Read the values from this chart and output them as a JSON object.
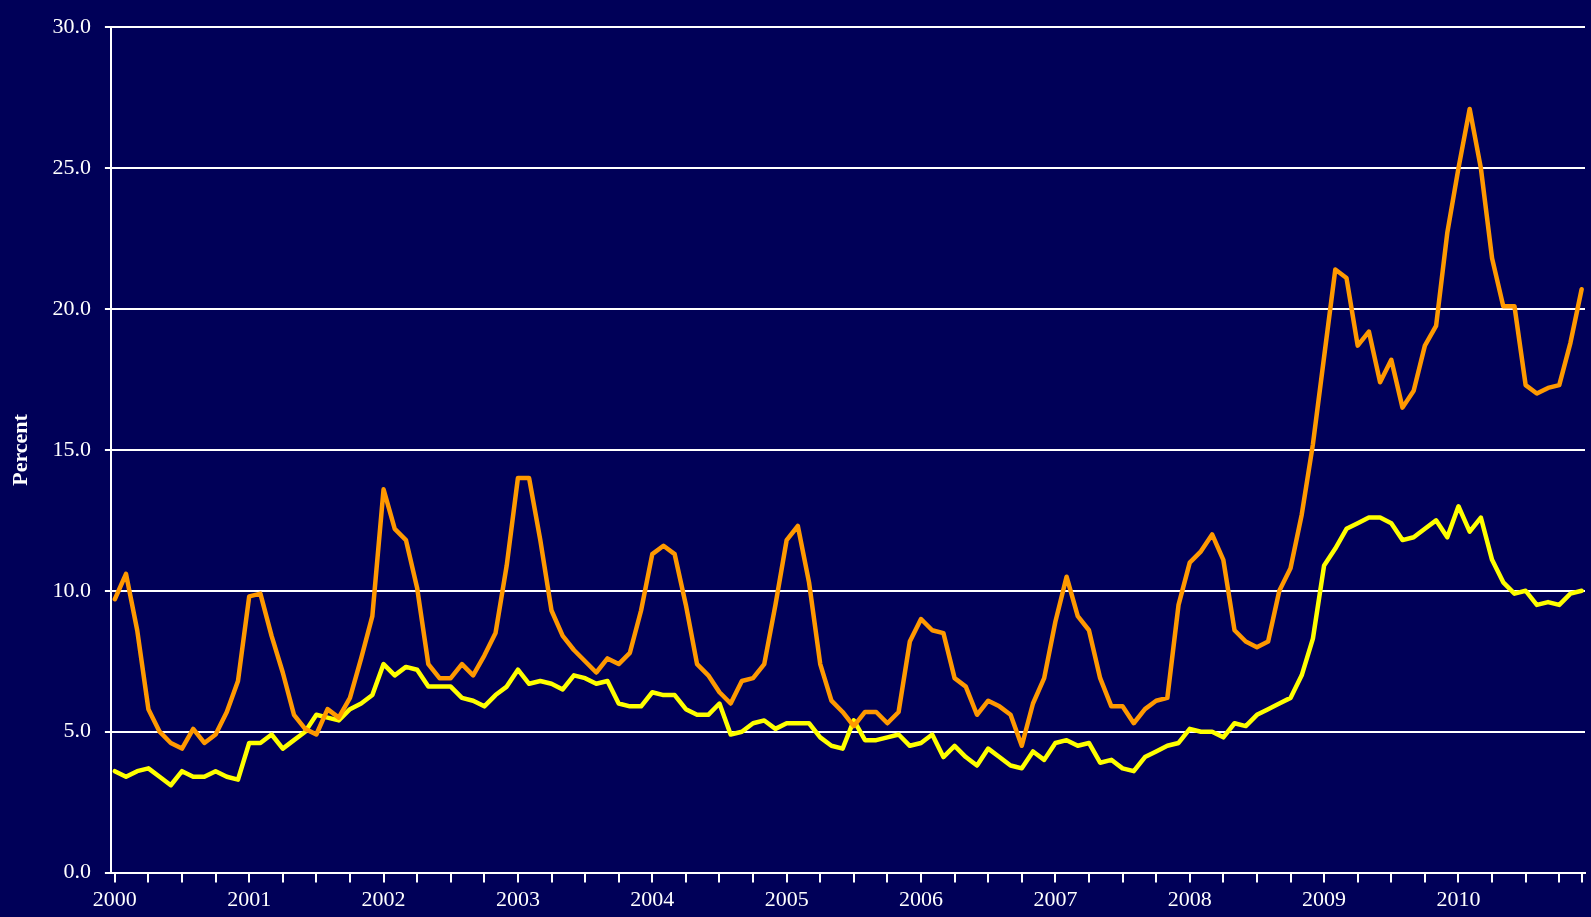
{
  "chart_data": {
    "type": "line",
    "ylabel": "Percent",
    "xlim": [
      "2000-01",
      "2010-12"
    ],
    "xticks": [
      {
        "value": "2000-01",
        "label": "2000"
      },
      {
        "value": "2000-04",
        "label": null
      },
      {
        "value": "2000-07",
        "label": null
      },
      {
        "value": "2000-10",
        "label": null
      },
      {
        "value": "2001-01",
        "label": "2001"
      },
      {
        "value": "2001-04",
        "label": null
      },
      {
        "value": "2001-07",
        "label": null
      },
      {
        "value": "2001-10",
        "label": null
      },
      {
        "value": "2002-01",
        "label": "2002"
      },
      {
        "value": "2002-04",
        "label": null
      },
      {
        "value": "2002-07",
        "label": null
      },
      {
        "value": "2002-10",
        "label": null
      },
      {
        "value": "2003-01",
        "label": "2003"
      },
      {
        "value": "2003-04",
        "label": null
      },
      {
        "value": "2003-07",
        "label": null
      },
      {
        "value": "2003-10",
        "label": null
      },
      {
        "value": "2004-01",
        "label": "2004"
      },
      {
        "value": "2004-04",
        "label": null
      },
      {
        "value": "2004-07",
        "label": null
      },
      {
        "value": "2004-10",
        "label": null
      },
      {
        "value": "2005-01",
        "label": "2005"
      },
      {
        "value": "2005-04",
        "label": null
      },
      {
        "value": "2005-07",
        "label": null
      },
      {
        "value": "2005-10",
        "label": null
      },
      {
        "value": "2006-01",
        "label": "2006"
      },
      {
        "value": "2006-04",
        "label": null
      },
      {
        "value": "2006-07",
        "label": null
      },
      {
        "value": "2006-10",
        "label": null
      },
      {
        "value": "2007-01",
        "label": "2007"
      },
      {
        "value": "2007-04",
        "label": null
      },
      {
        "value": "2007-07",
        "label": null
      },
      {
        "value": "2007-10",
        "label": null
      },
      {
        "value": "2008-01",
        "label": "2008"
      },
      {
        "value": "2008-04",
        "label": null
      },
      {
        "value": "2008-07",
        "label": null
      },
      {
        "value": "2008-10",
        "label": null
      },
      {
        "value": "2009-01",
        "label": "2009"
      },
      {
        "value": "2009-04",
        "label": null
      },
      {
        "value": "2009-07",
        "label": null
      },
      {
        "value": "2009-10",
        "label": null
      },
      {
        "value": "2010-01",
        "label": "2010"
      },
      {
        "value": "2010-04",
        "label": null
      },
      {
        "value": "2010-07",
        "label": null
      },
      {
        "value": "2010-10",
        "label": null
      },
      {
        "value": "2010-12",
        "label": null
      }
    ],
    "ylim": [
      0,
      30
    ],
    "yticks": [
      {
        "value": 0,
        "label": "0.0"
      },
      {
        "value": 5,
        "label": "5.0"
      },
      {
        "value": 10,
        "label": "10.0"
      },
      {
        "value": 15,
        "label": "15.0"
      },
      {
        "value": 20,
        "label": "20.0"
      },
      {
        "value": 25,
        "label": "25.0"
      },
      {
        "value": 30,
        "label": "30.0"
      }
    ],
    "grid": "y",
    "legend": false,
    "marker": "none",
    "line_style": "solid",
    "x": [
      "2000-01",
      "2000-02",
      "2000-03",
      "2000-04",
      "2000-05",
      "2000-06",
      "2000-07",
      "2000-08",
      "2000-09",
      "2000-10",
      "2000-11",
      "2000-12",
      "2001-01",
      "2001-02",
      "2001-03",
      "2001-04",
      "2001-05",
      "2001-06",
      "2001-07",
      "2001-08",
      "2001-09",
      "2001-10",
      "2001-11",
      "2001-12",
      "2002-01",
      "2002-02",
      "2002-03",
      "2002-04",
      "2002-05",
      "2002-06",
      "2002-07",
      "2002-08",
      "2002-09",
      "2002-10",
      "2002-11",
      "2002-12",
      "2003-01",
      "2003-02",
      "2003-03",
      "2003-04",
      "2003-05",
      "2003-06",
      "2003-07",
      "2003-08",
      "2003-09",
      "2003-10",
      "2003-11",
      "2003-12",
      "2004-01",
      "2004-02",
      "2004-03",
      "2004-04",
      "2004-05",
      "2004-06",
      "2004-07",
      "2004-08",
      "2004-09",
      "2004-10",
      "2004-11",
      "2004-12",
      "2005-01",
      "2005-02",
      "2005-03",
      "2005-04",
      "2005-05",
      "2005-06",
      "2005-07",
      "2005-08",
      "2005-09",
      "2005-10",
      "2005-11",
      "2005-12",
      "2006-01",
      "2006-02",
      "2006-03",
      "2006-04",
      "2006-05",
      "2006-06",
      "2006-07",
      "2006-08",
      "2006-09",
      "2006-10",
      "2006-11",
      "2006-12",
      "2007-01",
      "2007-02",
      "2007-03",
      "2007-04",
      "2007-05",
      "2007-06",
      "2007-07",
      "2007-08",
      "2007-09",
      "2007-10",
      "2007-11",
      "2007-12",
      "2008-01",
      "2008-02",
      "2008-03",
      "2008-04",
      "2008-05",
      "2008-06",
      "2008-07",
      "2008-08",
      "2008-09",
      "2008-10",
      "2008-11",
      "2008-12",
      "2009-01",
      "2009-02",
      "2009-03",
      "2009-04",
      "2009-05",
      "2009-06",
      "2009-07",
      "2009-08",
      "2009-09",
      "2009-10",
      "2009-11",
      "2009-12",
      "2010-01",
      "2010-02",
      "2010-03",
      "2010-04",
      "2010-05",
      "2010-06",
      "2010-07",
      "2010-08",
      "2010-09",
      "2010-10",
      "2010-11",
      "2010-12"
    ],
    "series": [
      {
        "color": "#ff9900",
        "values": [
          9.7,
          10.6,
          8.6,
          5.8,
          5.0,
          4.6,
          4.4,
          5.1,
          4.6,
          4.9,
          5.7,
          6.8,
          9.8,
          9.9,
          8.4,
          7.1,
          5.6,
          5.1,
          4.9,
          5.8,
          5.5,
          6.2,
          7.6,
          9.1,
          13.6,
          12.2,
          11.8,
          10.1,
          7.4,
          6.9,
          6.9,
          7.4,
          7.0,
          7.7,
          8.5,
          10.9,
          14.0,
          14.0,
          11.8,
          9.3,
          8.4,
          7.9,
          7.5,
          7.1,
          7.6,
          7.4,
          7.8,
          9.3,
          11.3,
          11.6,
          11.3,
          9.5,
          7.4,
          7.0,
          6.4,
          6.0,
          6.8,
          6.9,
          7.4,
          9.5,
          11.8,
          12.3,
          10.3,
          7.4,
          6.1,
          5.7,
          5.2,
          5.7,
          5.7,
          5.3,
          5.7,
          8.2,
          9.0,
          8.6,
          8.5,
          6.9,
          6.6,
          5.6,
          6.1,
          5.9,
          5.6,
          4.5,
          6.0,
          6.9,
          8.9,
          10.5,
          9.1,
          8.6,
          6.9,
          5.9,
          5.9,
          5.3,
          5.8,
          6.1,
          6.2,
          9.5,
          11.0,
          11.4,
          12.0,
          11.1,
          8.6,
          8.2,
          8.0,
          8.2,
          10.0,
          10.8,
          12.7,
          15.2,
          18.3,
          21.4,
          21.1,
          18.7,
          19.2,
          17.4,
          18.2,
          16.5,
          17.1,
          18.7,
          19.4,
          22.7,
          25.0,
          27.1,
          25.0,
          21.8,
          20.1,
          20.1,
          17.3,
          17.0,
          17.2,
          17.3,
          18.8,
          20.7
        ]
      },
      {
        "color": "#ffff00",
        "values": [
          3.6,
          3.4,
          3.6,
          3.7,
          3.4,
          3.1,
          3.6,
          3.4,
          3.4,
          3.6,
          3.4,
          3.3,
          4.6,
          4.6,
          4.9,
          4.4,
          4.7,
          5.0,
          5.6,
          5.5,
          5.4,
          5.8,
          6.0,
          6.3,
          7.4,
          7.0,
          7.3,
          7.2,
          6.6,
          6.6,
          6.6,
          6.2,
          6.1,
          5.9,
          6.3,
          6.6,
          7.2,
          6.7,
          6.8,
          6.7,
          6.5,
          7.0,
          6.9,
          6.7,
          6.8,
          6.0,
          5.9,
          5.9,
          6.4,
          6.3,
          6.3,
          5.8,
          5.6,
          5.6,
          6.0,
          4.9,
          5.0,
          5.3,
          5.4,
          5.1,
          5.3,
          5.3,
          5.3,
          4.8,
          4.5,
          4.4,
          5.4,
          4.7,
          4.7,
          4.8,
          4.9,
          4.5,
          4.6,
          4.9,
          4.1,
          4.5,
          4.1,
          3.8,
          4.4,
          4.1,
          3.8,
          3.7,
          4.3,
          4.0,
          4.6,
          4.7,
          4.5,
          4.6,
          3.9,
          4.0,
          3.7,
          3.6,
          4.1,
          4.3,
          4.5,
          4.6,
          5.1,
          5.0,
          5.0,
          4.8,
          5.3,
          5.2,
          5.6,
          5.8,
          6.0,
          6.2,
          7.0,
          8.3,
          10.9,
          11.5,
          12.2,
          12.4,
          12.6,
          12.6,
          12.4,
          11.8,
          11.9,
          12.2,
          12.5,
          11.9,
          13.0,
          12.1,
          12.6,
          11.1,
          10.3,
          9.9,
          10.0,
          9.5,
          9.6,
          9.5,
          9.9,
          10.0
        ]
      }
    ]
  }
}
